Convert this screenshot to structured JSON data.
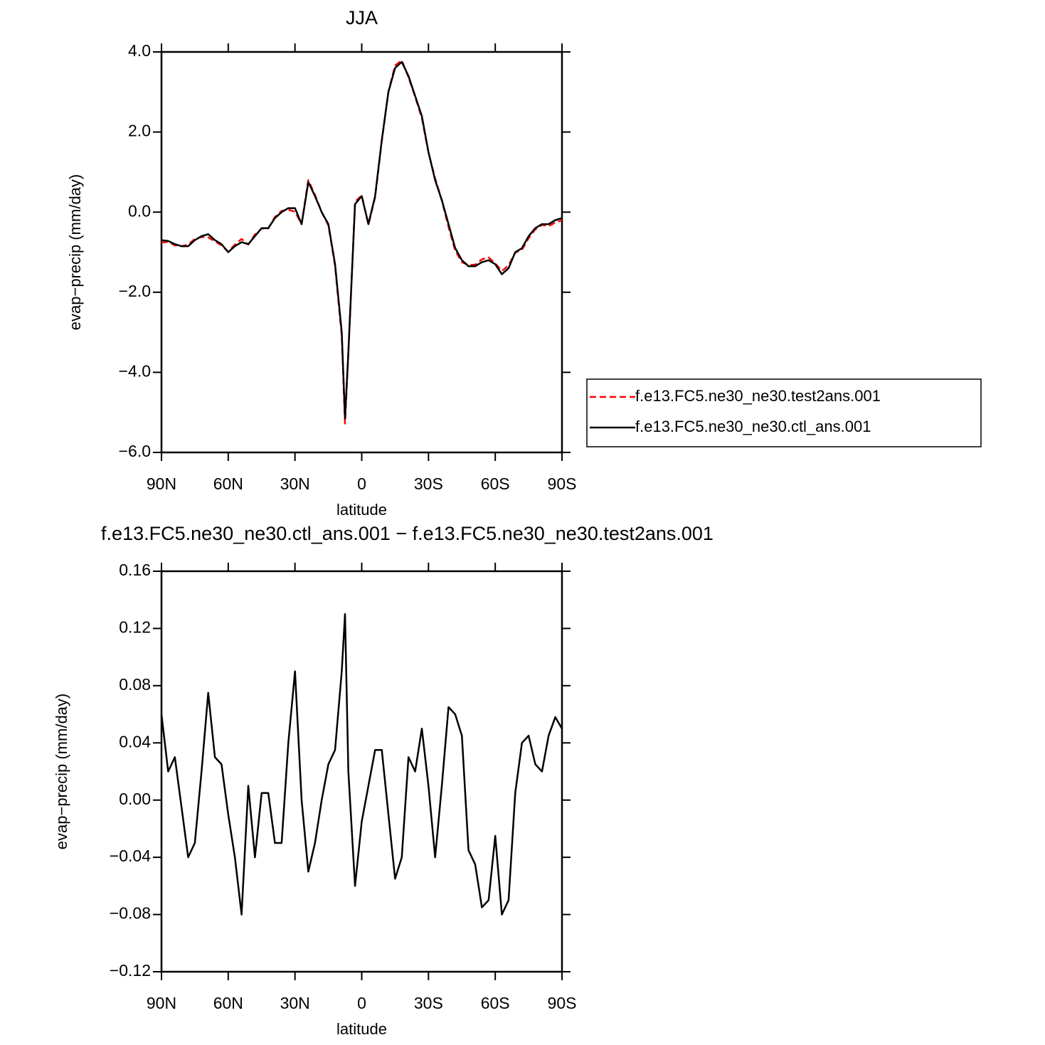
{
  "chart_data": [
    {
      "type": "line",
      "title": "JJA",
      "xlabel": "latitude",
      "ylabel": "evap−precip (mm/day)",
      "x": [
        90,
        87,
        84,
        81,
        78,
        75,
        72,
        69,
        66,
        63,
        60,
        57,
        54,
        51,
        48,
        45,
        42,
        39,
        36,
        33,
        30,
        27,
        24,
        21,
        18,
        15,
        12,
        9,
        7.5,
        6,
        3,
        0,
        -3,
        -6,
        -9,
        -12,
        -15,
        -18,
        -21,
        -24,
        -27,
        -30,
        -33,
        -36,
        -39,
        -42,
        -45,
        -48,
        -51,
        -54,
        -57,
        -60,
        -63,
        -66,
        -69,
        -72,
        -75,
        -78,
        -81,
        -84,
        -87,
        -90
      ],
      "series": [
        {
          "name": "f.e13.FC5.ne30_ne30.test2ans.001",
          "color": "#ff0000",
          "dash": true,
          "values": [
            -0.76,
            -0.74,
            -0.83,
            -0.85,
            -0.81,
            -0.67,
            -0.62,
            -0.63,
            -0.73,
            -0.83,
            -0.99,
            -0.81,
            -0.67,
            -0.81,
            -0.56,
            -0.41,
            -0.41,
            -0.12,
            0.03,
            0.06,
            0.01,
            -0.3,
            0.8,
            0.43,
            0.0,
            -0.33,
            -1.34,
            -3.09,
            -5.28,
            -3.52,
            0.26,
            0.42,
            -0.31,
            0.37,
            1.77,
            3.01,
            3.66,
            3.79,
            3.37,
            2.88,
            2.35,
            1.49,
            0.84,
            0.29,
            -0.37,
            -0.96,
            -1.25,
            -1.32,
            -1.31,
            -1.18,
            -1.13,
            -1.28,
            -1.47,
            -1.33,
            -1.01,
            -0.94,
            -0.65,
            -0.43,
            -0.32,
            -0.35,
            -0.26,
            -0.2
          ]
        },
        {
          "name": "f.e13.FC5.ne30_ne30.ctl_ans.001",
          "color": "#000000",
          "dash": false,
          "values": [
            -0.7,
            -0.72,
            -0.8,
            -0.85,
            -0.85,
            -0.7,
            -0.6,
            -0.55,
            -0.7,
            -0.8,
            -1.0,
            -0.85,
            -0.75,
            -0.8,
            -0.6,
            -0.4,
            -0.4,
            -0.15,
            0.0,
            0.1,
            0.1,
            -0.3,
            0.75,
            0.4,
            0.0,
            -0.3,
            -1.3,
            -3.0,
            -5.15,
            -3.5,
            0.2,
            0.4,
            -0.3,
            0.4,
            1.8,
            3.0,
            3.6,
            3.75,
            3.4,
            2.9,
            2.4,
            1.5,
            0.8,
            0.3,
            -0.3,
            -0.9,
            -1.2,
            -1.35,
            -1.35,
            -1.25,
            -1.2,
            -1.3,
            -1.55,
            -1.4,
            -1.0,
            -0.9,
            -0.6,
            -0.4,
            -0.3,
            -0.3,
            -0.2,
            -0.15
          ]
        }
      ],
      "xlim": [
        90,
        -90
      ],
      "xticks": [
        {
          "value": 90,
          "label": "90N"
        },
        {
          "value": 60,
          "label": "60N"
        },
        {
          "value": 30,
          "label": "30N"
        },
        0,
        {
          "value": -30,
          "label": "30S"
        },
        {
          "value": -60,
          "label": "60S"
        },
        {
          "value": -90,
          "label": "90S"
        }
      ],
      "ylim": [
        -6,
        4
      ],
      "yticks": [
        {
          "value": -6,
          "label": "−6.0"
        },
        {
          "value": -4,
          "label": "−4.0"
        },
        {
          "value": -2,
          "label": "−2.0"
        },
        {
          "value": 0,
          "label": "0.0"
        },
        {
          "value": 2,
          "label": "2.0"
        },
        {
          "value": 4,
          "label": "4.0"
        }
      ],
      "legend": "right"
    },
    {
      "type": "line",
      "title": "f.e13.FC5.ne30_ne30.ctl_ans.001  −  f.e13.FC5.ne30_ne30.test2ans.001",
      "xlabel": "latitude",
      "ylabel": "evap−precip (mm/day)",
      "x": [
        90,
        87,
        84,
        81,
        78,
        75,
        72,
        69,
        66,
        63,
        60,
        57,
        54,
        51,
        48,
        45,
        42,
        39,
        36,
        33,
        30,
        27,
        24,
        21,
        18,
        15,
        12,
        9,
        7.5,
        6,
        3,
        0,
        -3,
        -6,
        -9,
        -12,
        -15,
        -18,
        -21,
        -24,
        -27,
        -30,
        -33,
        -36,
        -39,
        -42,
        -45,
        -48,
        -51,
        -54,
        -57,
        -60,
        -63,
        -66,
        -69,
        -72,
        -75,
        -78,
        -81,
        -84,
        -87,
        -90
      ],
      "color": "#000000",
      "values": [
        0.06,
        0.02,
        0.03,
        -0.005,
        -0.04,
        -0.03,
        0.02,
        0.075,
        0.03,
        0.025,
        -0.01,
        -0.04,
        -0.08,
        0.01,
        -0.04,
        0.005,
        0.005,
        -0.03,
        -0.03,
        0.04,
        0.09,
        0.0,
        -0.05,
        -0.03,
        0.0,
        0.025,
        0.035,
        0.09,
        0.13,
        0.02,
        -0.06,
        -0.015,
        0.01,
        0.035,
        0.035,
        -0.01,
        -0.055,
        -0.04,
        0.03,
        0.02,
        0.05,
        0.01,
        -0.04,
        0.01,
        0.065,
        0.06,
        0.045,
        -0.035,
        -0.045,
        -0.075,
        -0.07,
        -0.025,
        -0.08,
        -0.07,
        0.005,
        0.04,
        0.045,
        0.025,
        0.02,
        0.045,
        0.058,
        0.05
      ],
      "xlim": [
        90,
        -90
      ],
      "xticks": [
        {
          "value": 90,
          "label": "90N"
        },
        {
          "value": 60,
          "label": "60N"
        },
        {
          "value": 30,
          "label": "30N"
        },
        0,
        {
          "value": -30,
          "label": "30S"
        },
        {
          "value": -60,
          "label": "60S"
        },
        {
          "value": -90,
          "label": "90S"
        }
      ],
      "ylim": [
        -0.12,
        0.16
      ],
      "yticks": [
        {
          "value": -0.12,
          "label": "−0.12"
        },
        {
          "value": -0.08,
          "label": "−0.08"
        },
        {
          "value": -0.04,
          "label": "−0.04"
        },
        {
          "value": 0,
          "label": "0.00"
        },
        0.04,
        0.08,
        0.12,
        0.16
      ]
    }
  ]
}
